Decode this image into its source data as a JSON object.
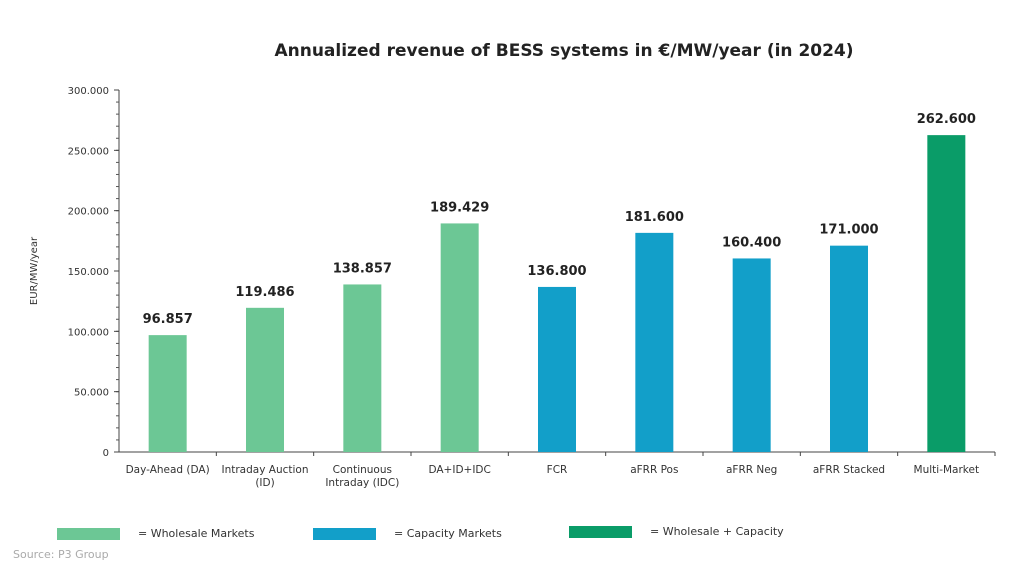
{
  "chart_data": {
    "type": "bar",
    "title": "Annualized revenue of BESS systems in €/MW/year (in 2024)",
    "xlabel": "",
    "ylabel": "EUR/MW/year",
    "ylim": [
      0,
      300000
    ],
    "yticks": [
      0,
      50000,
      100000,
      150000,
      200000,
      250000,
      300000
    ],
    "ytick_labels": [
      "0",
      "50.000",
      "100.000",
      "150.000",
      "200.000",
      "250.000",
      "300.000"
    ],
    "grid": false,
    "categories": [
      [
        "Day-Ahead (DA)"
      ],
      [
        "Intraday Auction",
        "(ID)"
      ],
      [
        "Continuous",
        "Intraday (IDC)"
      ],
      [
        "DA+ID+IDC"
      ],
      [
        "FCR"
      ],
      [
        "aFRR Pos"
      ],
      [
        "aFRR Neg"
      ],
      [
        "aFRR Stacked"
      ],
      [
        "Multi-Market"
      ]
    ],
    "values": [
      96857,
      119486,
      138857,
      189429,
      136800,
      181600,
      160400,
      171000,
      262600
    ],
    "data_labels": [
      "96.857",
      "119.486",
      "138.857",
      "189.429",
      "136.800",
      "181.600",
      "160.400",
      "171.000",
      "262.600"
    ],
    "groups": [
      "wholesale",
      "wholesale",
      "wholesale",
      "wholesale",
      "capacity",
      "capacity",
      "capacity",
      "capacity",
      "both"
    ],
    "colors": {
      "wholesale": "#6cc795",
      "capacity": "#129fc9",
      "both": "#0a9c68"
    },
    "legend": [
      {
        "key": "wholesale",
        "label": "= Wholesale Markets"
      },
      {
        "key": "capacity",
        "label": "= Capacity Markets"
      },
      {
        "key": "both",
        "label": "= Wholesale + Capacity"
      }
    ],
    "legend_placement": "bottom"
  },
  "source": "Source: P3 Group"
}
